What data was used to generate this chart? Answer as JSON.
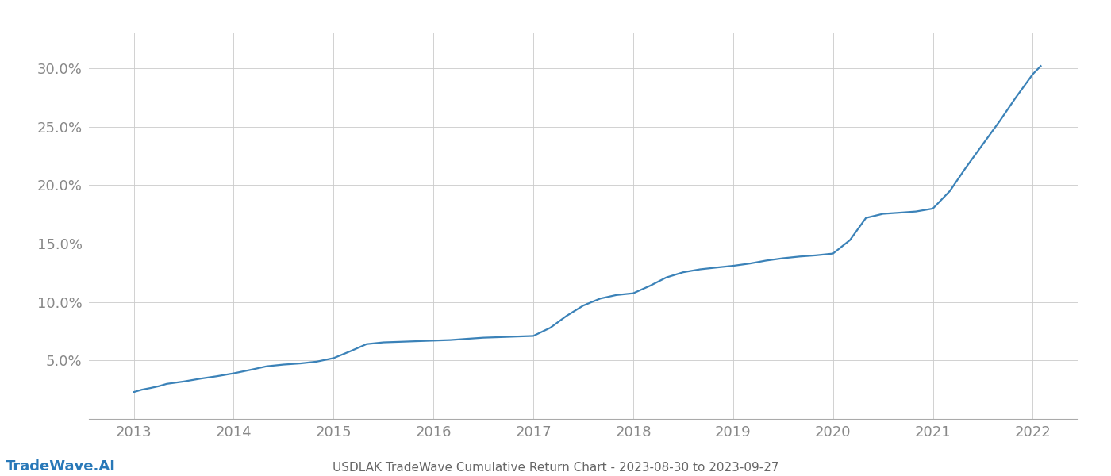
{
  "title": "USDLAK TradeWave Cumulative Return Chart - 2023-08-30 to 2023-09-27",
  "watermark": "TradeWave.AI",
  "line_color": "#3b82b8",
  "background_color": "#ffffff",
  "grid_color": "#cccccc",
  "x_values": [
    2013.0,
    2013.08,
    2013.17,
    2013.25,
    2013.33,
    2013.5,
    2013.67,
    2013.83,
    2014.0,
    2014.17,
    2014.33,
    2014.5,
    2014.67,
    2014.83,
    2015.0,
    2015.17,
    2015.33,
    2015.5,
    2015.67,
    2015.83,
    2016.0,
    2016.17,
    2016.33,
    2016.5,
    2016.67,
    2016.83,
    2017.0,
    2017.17,
    2017.33,
    2017.5,
    2017.67,
    2017.83,
    2018.0,
    2018.17,
    2018.33,
    2018.5,
    2018.67,
    2018.83,
    2019.0,
    2019.17,
    2019.33,
    2019.5,
    2019.67,
    2019.83,
    2020.0,
    2020.17,
    2020.33,
    2020.5,
    2020.67,
    2020.83,
    2021.0,
    2021.17,
    2021.33,
    2021.5,
    2021.67,
    2021.83,
    2022.0,
    2022.08
  ],
  "y_values": [
    2.3,
    2.5,
    2.65,
    2.8,
    3.0,
    3.2,
    3.45,
    3.65,
    3.9,
    4.2,
    4.5,
    4.65,
    4.75,
    4.9,
    5.2,
    5.8,
    6.4,
    6.55,
    6.6,
    6.65,
    6.7,
    6.75,
    6.85,
    6.95,
    7.0,
    7.05,
    7.1,
    7.8,
    8.8,
    9.7,
    10.3,
    10.6,
    10.75,
    11.4,
    12.1,
    12.55,
    12.8,
    12.95,
    13.1,
    13.3,
    13.55,
    13.75,
    13.9,
    14.0,
    14.15,
    15.3,
    17.2,
    17.55,
    17.65,
    17.75,
    18.0,
    19.5,
    21.5,
    23.5,
    25.5,
    27.5,
    29.5,
    30.2
  ],
  "xlim": [
    2012.55,
    2022.45
  ],
  "ylim": [
    0,
    33
  ],
  "yticks": [
    5.0,
    10.0,
    15.0,
    20.0,
    25.0,
    30.0
  ],
  "xticks": [
    2013,
    2014,
    2015,
    2016,
    2017,
    2018,
    2019,
    2020,
    2021,
    2022
  ],
  "tick_color": "#888888",
  "title_color": "#666666",
  "watermark_color": "#2878b8",
  "line_width": 1.6,
  "font_size_ticks": 13,
  "font_size_title": 11,
  "font_size_watermark": 13
}
